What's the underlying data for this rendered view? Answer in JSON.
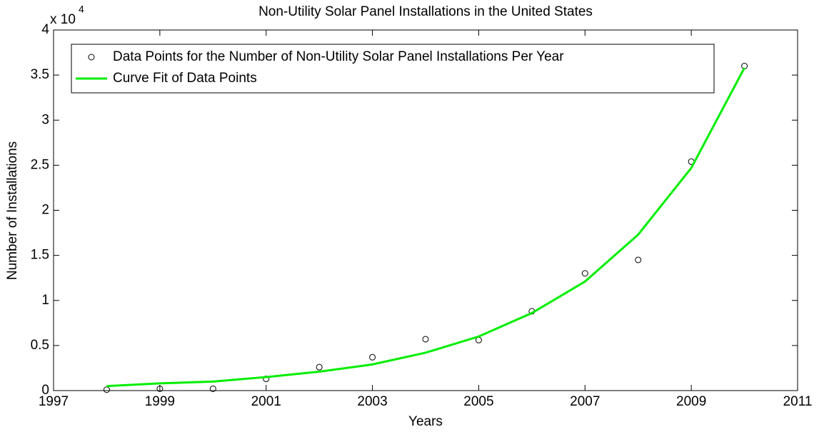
{
  "chart_data": {
    "type": "line",
    "title": "Non-Utility Solar Panel Installations in the United States",
    "xlabel": "Years",
    "ylabel": "Number of Installations",
    "y_multiplier": {
      "base": "x 10",
      "exponent": "4"
    },
    "x": [
      1998,
      1999,
      2000,
      2001,
      2002,
      2003,
      2004,
      2005,
      2006,
      2007,
      2008,
      2009,
      2010
    ],
    "series": [
      {
        "name": "Data Points for the Number of Non-Utility Solar Panel Installations Per Year",
        "color": "#000000",
        "style": "markers",
        "values": [
          0.01,
          0.02,
          0.02,
          0.13,
          0.26,
          0.37,
          0.57,
          0.56,
          0.88,
          1.3,
          1.45,
          2.54,
          3.6
        ]
      },
      {
        "name": "Curve Fit of Data Points",
        "color": "#00ee00",
        "style": "line",
        "values": [
          0.05,
          0.08,
          0.1,
          0.15,
          0.21,
          0.29,
          0.42,
          0.6,
          0.86,
          1.21,
          1.73,
          2.47,
          3.58
        ]
      }
    ],
    "xlim": [
      1997,
      2011
    ],
    "xticks": [
      1997,
      1999,
      2001,
      2003,
      2005,
      2007,
      2009,
      2011
    ],
    "ylim": [
      0,
      4
    ],
    "yticks": [
      0,
      0.5,
      1,
      1.5,
      2,
      2.5,
      3,
      3.5,
      4
    ],
    "legend": "upper left",
    "grid": false
  }
}
